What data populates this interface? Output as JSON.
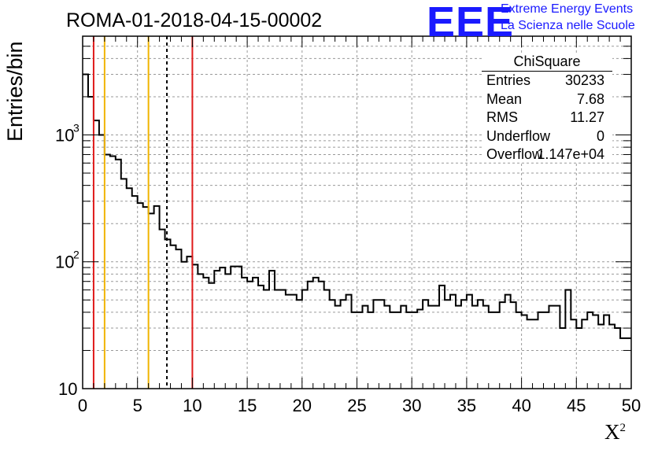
{
  "header": {
    "title": "ROMA-01-2018-04-15-00002",
    "logo_text": "EEE",
    "logo_line1": "Extreme Energy Events",
    "logo_line2": "La Scienza nelle Scuole"
  },
  "stats": {
    "title": "ChiSquare",
    "rows": [
      {
        "key": "Entries",
        "value": "30233"
      },
      {
        "key": "Mean",
        "value": "7.68"
      },
      {
        "key": "RMS",
        "value": "11.27"
      },
      {
        "key": "Underflow",
        "value": "0"
      },
      {
        "key": "Overflow",
        "value": "1.147e+04"
      }
    ]
  },
  "colors": {
    "red_line": "#e01b1b",
    "yellow_line": "#f0b400",
    "grid": "#9a9a9a",
    "logo": "#1a1aff"
  },
  "chart_data": {
    "type": "bar",
    "histogram_style": "step",
    "title": "ROMA-01-2018-04-15-00002",
    "xlabel": "X²",
    "ylabel": "Entries/bin",
    "xlim": [
      0,
      50
    ],
    "ylim": [
      10,
      6000
    ],
    "yscale": "log",
    "grid": true,
    "bin_width": 0.5,
    "x_ticks": [
      "0",
      "5",
      "10",
      "15",
      "20",
      "25",
      "30",
      "35",
      "40",
      "45",
      "50"
    ],
    "y_ticks": [
      {
        "base": "10",
        "exp": ""
      },
      {
        "base": "10",
        "exp": "2"
      },
      {
        "base": "10",
        "exp": "3"
      }
    ],
    "values": [
      3000,
      2000,
      1300,
      1000,
      700,
      680,
      640,
      450,
      380,
      330,
      290,
      270,
      240,
      275,
      180,
      150,
      135,
      125,
      100,
      110,
      95,
      80,
      75,
      68,
      85,
      90,
      80,
      92,
      92,
      75,
      70,
      75,
      65,
      60,
      85,
      60,
      60,
      55,
      55,
      50,
      60,
      70,
      75,
      70,
      60,
      50,
      45,
      50,
      55,
      40,
      40,
      45,
      40,
      50,
      50,
      45,
      40,
      40,
      45,
      40,
      40,
      42,
      50,
      45,
      45,
      65,
      50,
      55,
      45,
      50,
      55,
      45,
      50,
      45,
      40,
      40,
      48,
      55,
      48,
      40,
      38,
      35,
      35,
      40,
      40,
      45,
      45,
      30,
      60,
      35,
      30,
      35,
      40,
      38,
      32,
      38,
      32,
      30,
      25,
      25
    ],
    "vlines": [
      {
        "x": 1,
        "color": "red",
        "style": "solid"
      },
      {
        "x": 2,
        "color": "yellow",
        "style": "solid"
      },
      {
        "x": 6,
        "color": "yellow",
        "style": "solid"
      },
      {
        "x": 7.68,
        "color": "black",
        "style": "dashed"
      },
      {
        "x": 10,
        "color": "red",
        "style": "solid"
      }
    ]
  }
}
